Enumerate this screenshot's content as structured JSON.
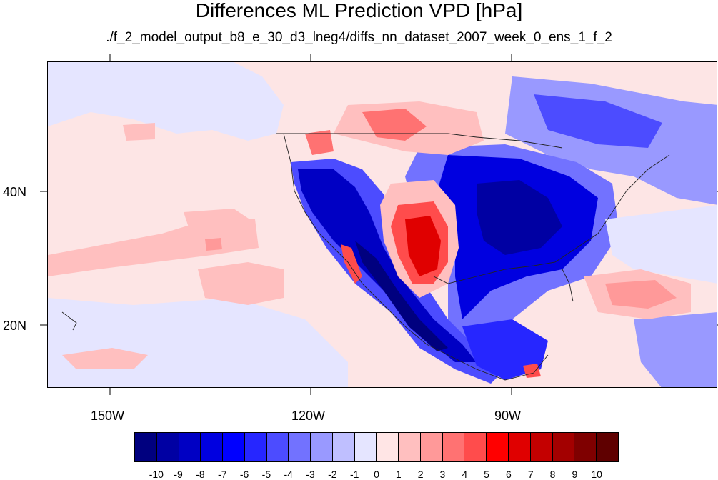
{
  "title": "Differences ML Prediction VPD [hPa]",
  "subtitle": "./f_2_model_output_b8_e_30_d3_lneg4/diffs_nn_dataset_2007_week_0_ens_1_f_2",
  "axes": {
    "longitude_labels": [
      "150W",
      "120W",
      "90W"
    ],
    "latitude_labels": [
      "40N",
      "20N"
    ]
  },
  "colorbar": {
    "labels": [
      "-10",
      "-9",
      "-8",
      "-7",
      "-6",
      "-5",
      "-4",
      "-3",
      "-2",
      "-1",
      "0",
      "1",
      "2",
      "3",
      "4",
      "5",
      "6",
      "7",
      "8",
      "9",
      "10"
    ],
    "colors": [
      "#00007f",
      "#0000a3",
      "#0000c4",
      "#0000e0",
      "#0000ff",
      "#2626ff",
      "#4c4cff",
      "#7272ff",
      "#9999ff",
      "#bfbfff",
      "#e5e5ff",
      "#ffe5e5",
      "#ffbfbf",
      "#ff9999",
      "#ff7272",
      "#ff4c4c",
      "#ff0000",
      "#e00000",
      "#c40000",
      "#a30000",
      "#7f0000",
      "#5f0000"
    ]
  },
  "map_colors": {
    "background": "#fde5e5",
    "light_blue": "#e5e5ff",
    "pale_blue": "#bfbfff",
    "mid_blue": "#7272ff",
    "blue": "#2626ff",
    "deep_blue": "#0000c4",
    "navy": "#00007f",
    "pale_red": "#ffbfbf",
    "mid_red": "#ff7272",
    "red": "#ff0000",
    "deep_red": "#c40000"
  }
}
